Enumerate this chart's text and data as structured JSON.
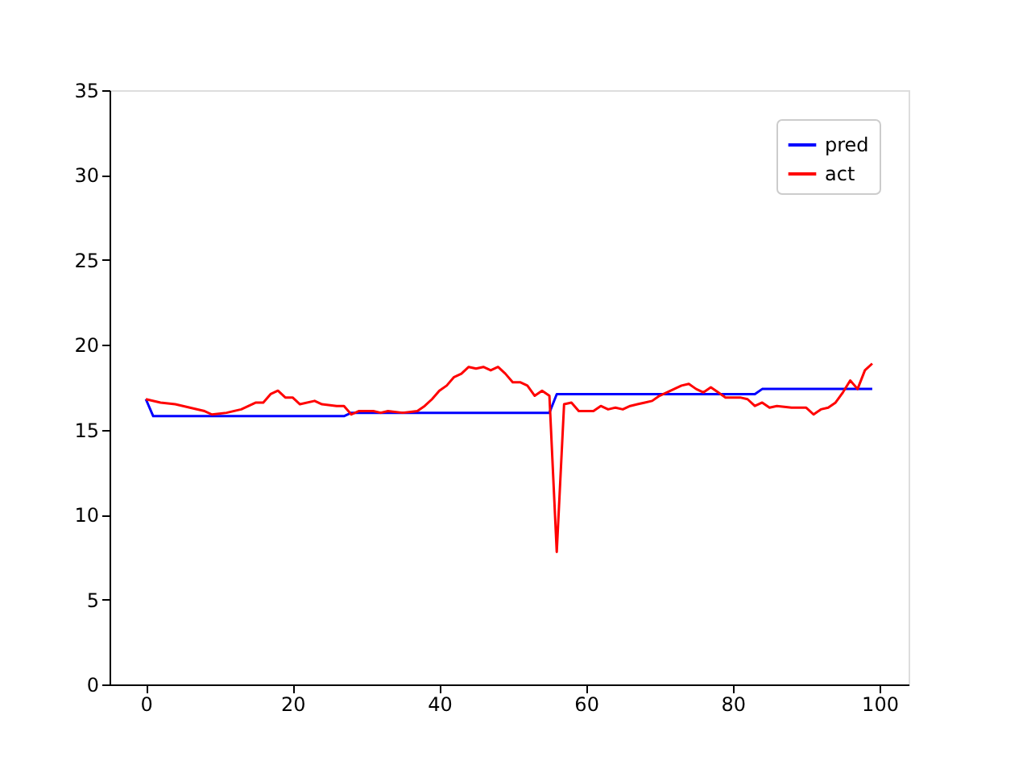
{
  "chart_data": {
    "type": "line",
    "xlim": [
      -4.95,
      103.95
    ],
    "xticks": [
      0,
      20,
      40,
      60,
      80,
      100
    ],
    "ylim": [
      0,
      35
    ],
    "yticks": [
      0,
      5,
      10,
      15,
      20,
      25,
      30,
      35
    ],
    "grid": false,
    "legend": "top right",
    "series": [
      {
        "name": "pred",
        "color": "#0000ff",
        "x": [
          0,
          1,
          27,
          28,
          55,
          56,
          83,
          84,
          99
        ],
        "values": [
          16.8,
          15.8,
          15.8,
          16.0,
          16.0,
          17.1,
          17.1,
          17.4,
          17.4
        ]
      },
      {
        "name": "act",
        "color": "#ff0000",
        "x": [
          0,
          2,
          4,
          6,
          8,
          9,
          11,
          13,
          15,
          16,
          17,
          18,
          19,
          20,
          21,
          23,
          24,
          26,
          27,
          28,
          29,
          31,
          32,
          33,
          35,
          37,
          38,
          39,
          40,
          41,
          42,
          43,
          44,
          45,
          46,
          47,
          48,
          49,
          50,
          51,
          52,
          53,
          54,
          55,
          56,
          57,
          58,
          59,
          60,
          61,
          62,
          63,
          64,
          65,
          66,
          67,
          68,
          69,
          70,
          71,
          72,
          73,
          74,
          75,
          76,
          77,
          78,
          79,
          80,
          81,
          82,
          83,
          84,
          85,
          86,
          88,
          90,
          91,
          92,
          93,
          94,
          95,
          96,
          97,
          98,
          99
        ],
        "values": [
          16.8,
          16.6,
          16.5,
          16.3,
          16.1,
          15.9,
          16.0,
          16.2,
          16.6,
          16.6,
          17.1,
          17.3,
          16.9,
          16.9,
          16.5,
          16.7,
          16.5,
          16.4,
          16.4,
          15.9,
          16.1,
          16.1,
          16.0,
          16.1,
          16.0,
          16.1,
          16.4,
          16.8,
          17.3,
          17.6,
          18.1,
          18.3,
          18.7,
          18.6,
          18.7,
          18.5,
          18.7,
          18.3,
          17.8,
          17.8,
          17.6,
          17.0,
          17.3,
          17.0,
          7.8,
          16.5,
          16.6,
          16.1,
          16.1,
          16.1,
          16.4,
          16.2,
          16.3,
          16.2,
          16.4,
          16.5,
          16.6,
          16.7,
          17.0,
          17.2,
          17.4,
          17.6,
          17.7,
          17.4,
          17.2,
          17.5,
          17.2,
          16.9,
          16.9,
          16.9,
          16.8,
          16.4,
          16.6,
          16.3,
          16.4,
          16.3,
          16.3,
          15.9,
          16.2,
          16.3,
          16.6,
          17.2,
          17.9,
          17.4,
          18.5,
          18.9
        ]
      }
    ]
  }
}
